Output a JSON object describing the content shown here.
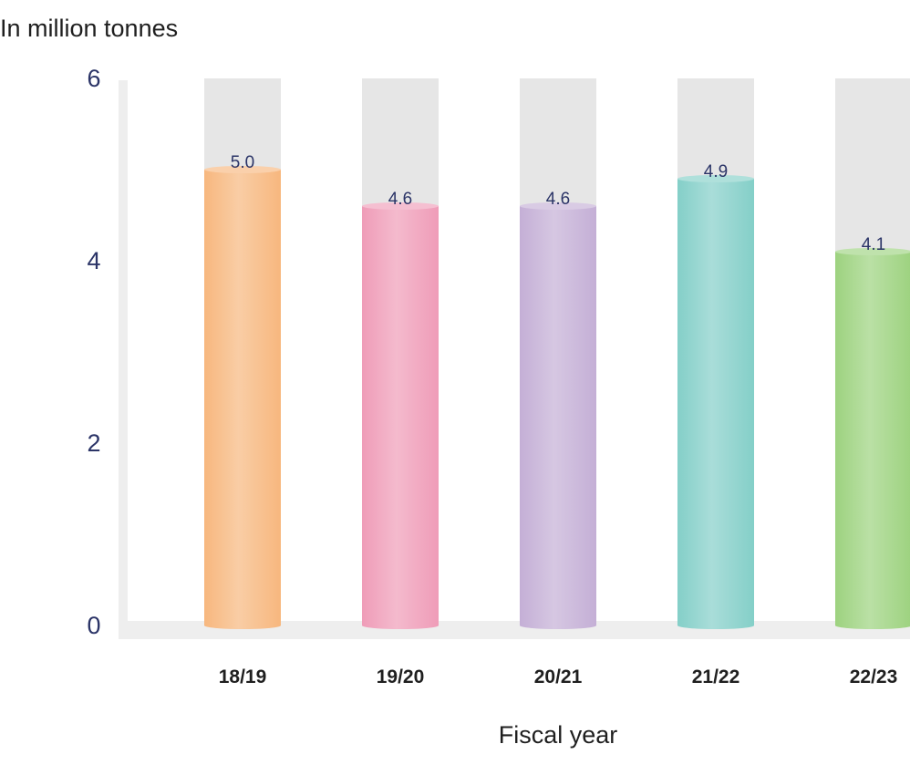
{
  "chart_data": {
    "type": "bar",
    "ylabel": "In million tonnes",
    "xlabel": "Fiscal year",
    "categories": [
      "18/19",
      "19/20",
      "20/21",
      "21/22",
      "22/23"
    ],
    "values": [
      5.0,
      4.6,
      4.6,
      4.9,
      4.1
    ],
    "data_labels": [
      "5.0",
      "4.6",
      "4.6",
      "4.9",
      "4.1"
    ],
    "ylim": [
      0,
      6
    ],
    "yticks": [
      "0",
      "2",
      "4",
      "6"
    ],
    "grid": false,
    "legend": "none",
    "colors": [
      "#f7b77e",
      "#ef9cb8",
      "#c4afd6",
      "#84cfc8",
      "#9dd27f"
    ],
    "background_track_color": "#e6e6e6"
  }
}
